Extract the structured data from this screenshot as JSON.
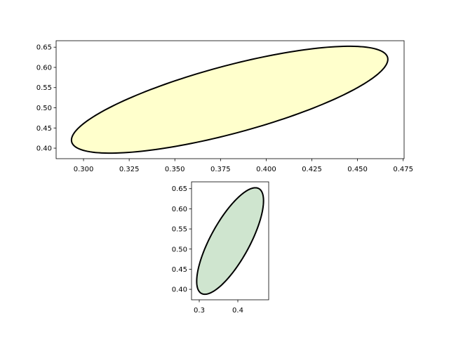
{
  "chart_data": [
    {
      "type": "ellipse",
      "center": [
        0.38,
        0.52
      ],
      "width": 0.3,
      "height": 0.1,
      "angle": 60,
      "color": "#ffffcc",
      "edgecolor": "#000000",
      "xlim": [
        0.285,
        0.4755
      ],
      "ylim": [
        0.374,
        0.666
      ],
      "xticks": [
        {
          "value": 0.3,
          "label": "0.300"
        },
        {
          "value": 0.325,
          "label": "0.325"
        },
        {
          "value": 0.35,
          "label": "0.350"
        },
        {
          "value": 0.375,
          "label": "0.375"
        },
        {
          "value": 0.4,
          "label": "0.400"
        },
        {
          "value": 0.425,
          "label": "0.425"
        },
        {
          "value": 0.45,
          "label": "0.450"
        },
        {
          "value": 0.475,
          "label": "0.475"
        }
      ],
      "yticks": [
        {
          "value": 0.4,
          "label": "0.40"
        },
        0.45,
        {
          "value": 0.5,
          "label": "0.50"
        },
        0.55,
        {
          "value": 0.6,
          "label": "0.60"
        },
        0.65
      ]
    },
    {
      "type": "ellipse",
      "center": [
        0.38,
        0.52
      ],
      "width": 0.3,
      "height": 0.1,
      "angle": 60,
      "color": "#cfe5cf",
      "edgecolor": "#000000",
      "xlim": [
        0.28,
        0.48
      ],
      "ylim": [
        0.374,
        0.667
      ],
      "xticks": [
        0.3,
        0.4
      ],
      "yticks": [
        {
          "value": 0.4,
          "label": "0.40"
        },
        0.45,
        {
          "value": 0.5,
          "label": "0.50"
        },
        0.55,
        {
          "value": 0.6,
          "label": "0.60"
        },
        0.65
      ]
    }
  ]
}
